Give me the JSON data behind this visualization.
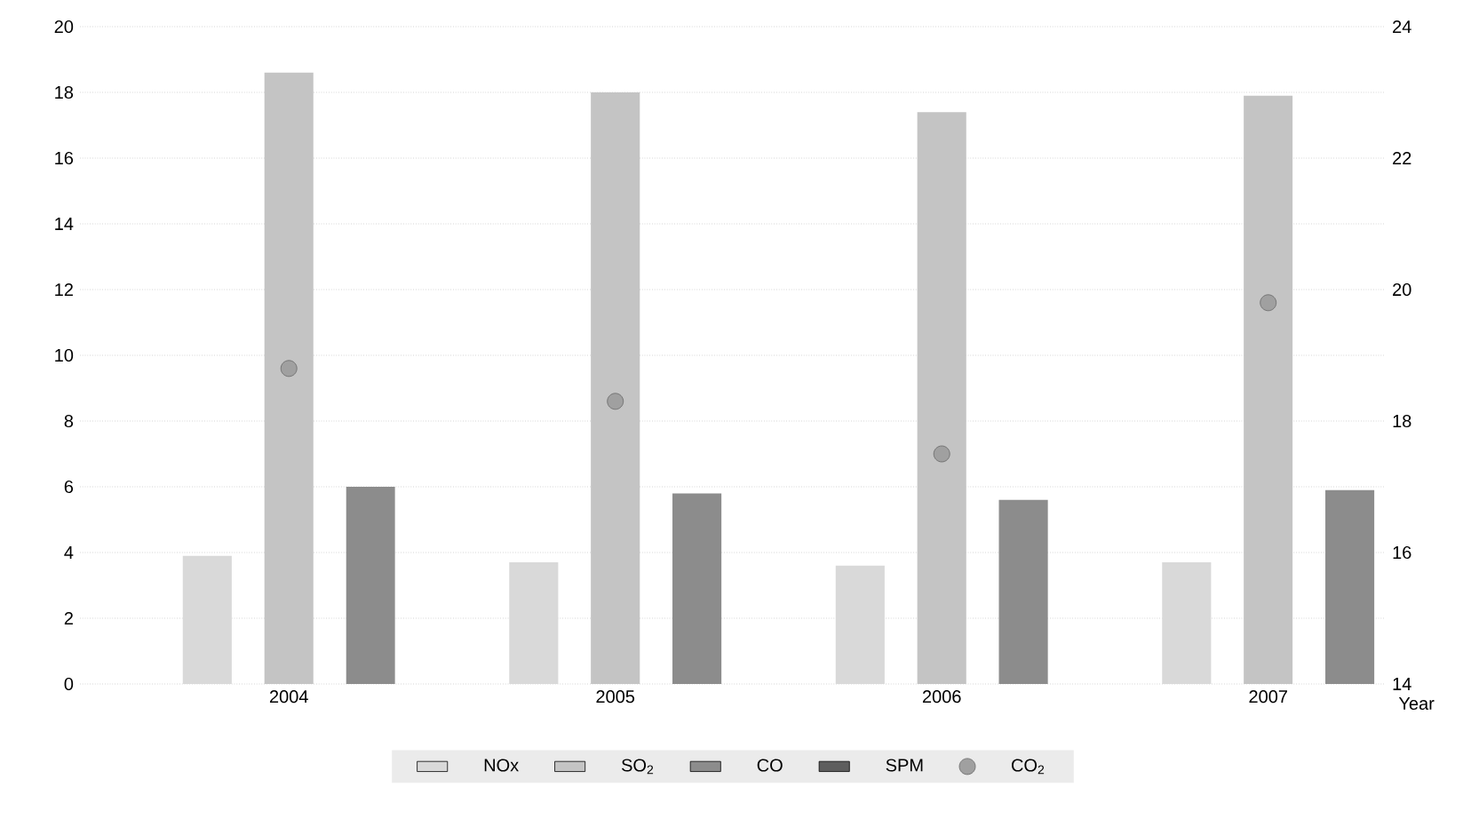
{
  "chart_data": {
    "type": "bar",
    "xlabel": "Year",
    "categories": [
      "2004",
      "2005",
      "2006",
      "2007"
    ],
    "series": [
      {
        "name": "NOx",
        "color": "#d9d9d9",
        "values": [
          3.9,
          3.7,
          3.6,
          3.7
        ]
      },
      {
        "name": "SO$_{2}$",
        "color": "#c4c4c4",
        "values": [
          18.6,
          18.0,
          17.4,
          17.9
        ]
      },
      {
        "name": "CO",
        "color": "#8c8c8c",
        "values": [
          6.0,
          5.8,
          5.6,
          5.9
        ]
      },
      {
        "name": "SPM",
        "color": "#5e5e5e",
        "values": [
          null,
          null,
          null,
          null
        ]
      },
      {
        "name": "CO$_{2}$",
        "color": "#a0a0a0",
        "type": "scatter",
        "axis": "y2",
        "marker": "circle",
        "values": [
          18.8,
          18.3,
          17.5,
          19.8
        ]
      }
    ],
    "ylim": [
      0,
      20
    ],
    "yticks": [
      0,
      2,
      4,
      6,
      8,
      10,
      12,
      14,
      16,
      18,
      20
    ],
    "y2lim": [
      14,
      24
    ],
    "y2ticks": [
      14,
      16,
      18,
      20,
      22,
      24
    ],
    "grid": "y",
    "legend": "bottom"
  }
}
